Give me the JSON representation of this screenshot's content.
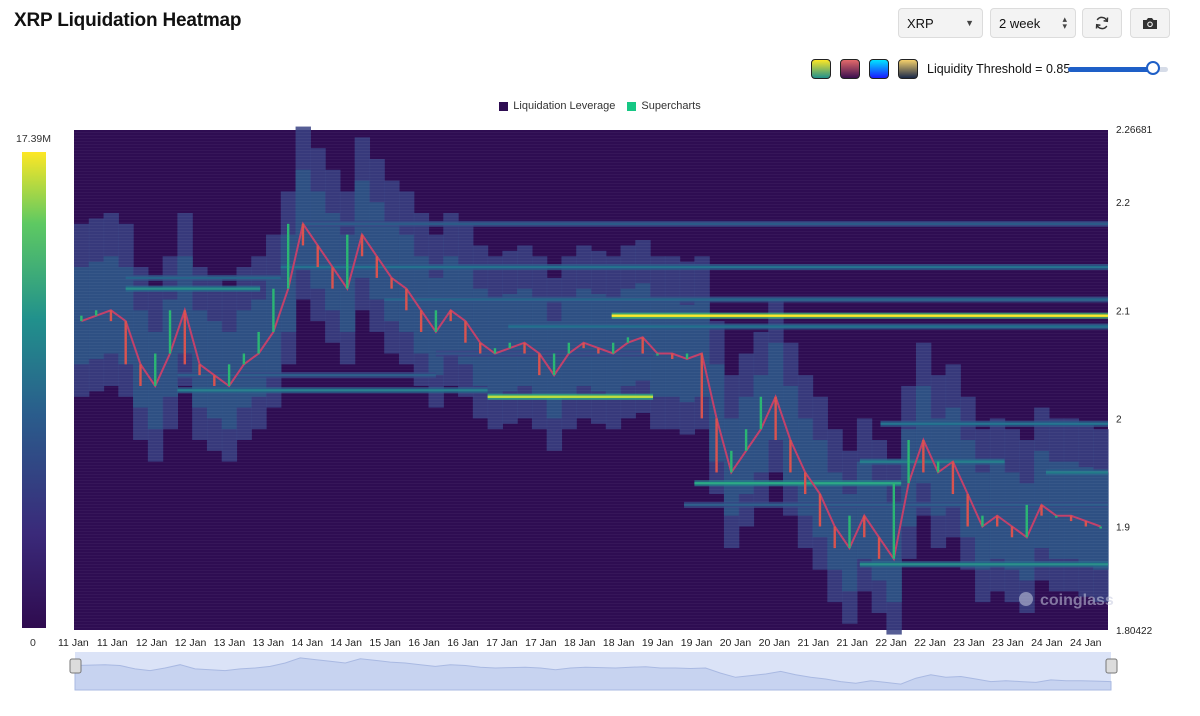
{
  "header": {
    "title": "XRP Liquidation Heatmap",
    "symbol": "XRP",
    "range": "2 week"
  },
  "colors": {
    "swatches": [
      {
        "name": "viridis",
        "from": "#fde725",
        "to": "#21918c"
      },
      {
        "name": "magma",
        "from": "#e36a6a",
        "to": "#3b0f4f"
      },
      {
        "name": "blue",
        "from": "#00e5ff",
        "to": "#1a1aff"
      },
      {
        "name": "gold",
        "from": "#f5d06b",
        "to": "#1b2a4a"
      }
    ],
    "legend_leverage": "#2e0d52",
    "legend_supercharts": "#16c784"
  },
  "threshold": {
    "label": "Liquidity Threshold = 0.85",
    "value": 0.85
  },
  "legend": {
    "items": [
      "Liquidation Leverage",
      "Supercharts"
    ]
  },
  "colorbar": {
    "max": "17.39M",
    "min": "0"
  },
  "watermark": "coinglass",
  "chart_data": {
    "type": "heatmap",
    "x_ticks": [
      "11 Jan",
      "11 Jan",
      "12 Jan",
      "12 Jan",
      "13 Jan",
      "13 Jan",
      "14 Jan",
      "14 Jan",
      "15 Jan",
      "16 Jan",
      "16 Jan",
      "17 Jan",
      "17 Jan",
      "18 Jan",
      "18 Jan",
      "19 Jan",
      "19 Jan",
      "20 Jan",
      "20 Jan",
      "21 Jan",
      "21 Jan",
      "22 Jan",
      "22 Jan",
      "23 Jan",
      "23 Jan",
      "24 Jan",
      "24 Jan"
    ],
    "y_ticks": [
      "2.26681",
      "2.2",
      "2.1",
      "2",
      "1.9",
      "1.80422"
    ],
    "ylim": [
      1.80422,
      2.26681
    ],
    "price": [
      2.09,
      2.095,
      2.1,
      2.09,
      2.05,
      2.03,
      2.06,
      2.1,
      2.05,
      2.04,
      2.03,
      2.05,
      2.06,
      2.08,
      2.12,
      2.18,
      2.16,
      2.14,
      2.12,
      2.17,
      2.15,
      2.13,
      2.12,
      2.1,
      2.08,
      2.1,
      2.09,
      2.07,
      2.06,
      2.065,
      2.07,
      2.06,
      2.04,
      2.06,
      2.07,
      2.065,
      2.06,
      2.07,
      2.075,
      2.06,
      2.06,
      2.055,
      2.06,
      2.0,
      1.95,
      1.97,
      1.99,
      2.02,
      1.98,
      1.95,
      1.93,
      1.9,
      1.88,
      1.91,
      1.89,
      1.87,
      1.94,
      1.98,
      1.95,
      1.96,
      1.93,
      1.9,
      1.91,
      1.9,
      1.89,
      1.92,
      1.91,
      1.91,
      1.905,
      1.9
    ],
    "bands": [
      {
        "y": 2.095,
        "intensity": 1.0,
        "from": 0.52,
        "to": 1.0
      },
      {
        "y": 2.085,
        "intensity": 0.55,
        "from": 0.42,
        "to": 1.0
      },
      {
        "y": 2.02,
        "intensity": 0.95,
        "from": 0.4,
        "to": 0.56
      },
      {
        "y": 2.026,
        "intensity": 0.6,
        "from": 0.1,
        "to": 0.4
      },
      {
        "y": 2.04,
        "intensity": 0.45,
        "from": 0.1,
        "to": 0.35
      },
      {
        "y": 2.14,
        "intensity": 0.55,
        "from": 0.2,
        "to": 1.0
      },
      {
        "y": 2.13,
        "intensity": 0.5,
        "from": 0.05,
        "to": 0.2
      },
      {
        "y": 2.12,
        "intensity": 0.65,
        "from": 0.05,
        "to": 0.18
      },
      {
        "y": 2.18,
        "intensity": 0.45,
        "from": 0.22,
        "to": 1.0
      },
      {
        "y": 2.11,
        "intensity": 0.5,
        "from": 0.3,
        "to": 1.0
      },
      {
        "y": 1.995,
        "intensity": 0.55,
        "from": 0.78,
        "to": 1.0
      },
      {
        "y": 1.94,
        "intensity": 0.75,
        "from": 0.6,
        "to": 0.8
      },
      {
        "y": 1.92,
        "intensity": 0.45,
        "from": 0.59,
        "to": 1.0
      },
      {
        "y": 1.96,
        "intensity": 0.6,
        "from": 0.76,
        "to": 0.9
      },
      {
        "y": 1.865,
        "intensity": 0.65,
        "from": 0.76,
        "to": 1.0
      },
      {
        "y": 1.95,
        "intensity": 0.6,
        "from": 0.94,
        "to": 1.0
      },
      {
        "y": 2.06,
        "intensity": 0.4,
        "from": 0.35,
        "to": 0.56
      }
    ]
  }
}
